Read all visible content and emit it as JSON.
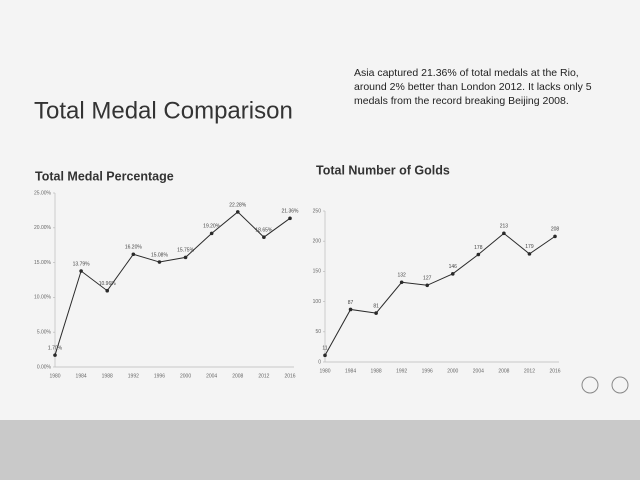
{
  "title": "Total Medal Comparison",
  "note": "Asia captured 21.36% of total medals at the Rio, around 2% better than London 2012. It lacks only 5 medals from the record breaking Beijing 2008.",
  "chart_data": [
    {
      "type": "line",
      "title": "Total Medal Percentage",
      "categories": [
        "1980",
        "1984",
        "1988",
        "1992",
        "1996",
        "2000",
        "2004",
        "2008",
        "2012",
        "2016"
      ],
      "series": [
        {
          "name": "Total Medal Percentage",
          "color": "#2a2a2a",
          "values": [
            1.7,
            13.79,
            10.96,
            16.2,
            15.08,
            15.75,
            19.2,
            22.28,
            18.65,
            21.36
          ],
          "value_labels": [
            "1.70%",
            "13.79%",
            "10.96%",
            "16.20%",
            "15.08%",
            "15.75%",
            "19.20%",
            "22.28%",
            "18.65%",
            "21.36%"
          ]
        }
      ],
      "ylim": [
        0,
        25
      ],
      "yticks": [
        {
          "value": 0,
          "label": "0.00%"
        },
        {
          "value": 5,
          "label": "5.00%"
        },
        {
          "value": 10,
          "label": "10.00%"
        },
        {
          "value": 15,
          "label": "15.00%"
        },
        {
          "value": 20,
          "label": "20.00%"
        },
        {
          "value": 25,
          "label": "25.00%"
        }
      ]
    },
    {
      "type": "line",
      "title": "Total Number of Golds",
      "categories": [
        "1980",
        "1984",
        "1988",
        "1992",
        "1996",
        "2000",
        "2004",
        "2008",
        "2012",
        "2016"
      ],
      "series": [
        {
          "name": "Total Number of Golds",
          "color": "#2a2a2a",
          "values": [
            11,
            87,
            81,
            132,
            127,
            146,
            178,
            213,
            179,
            208
          ]
        }
      ],
      "ylim": [
        0,
        250
      ],
      "yticks": [
        0,
        50,
        100,
        150,
        200,
        250
      ]
    }
  ]
}
